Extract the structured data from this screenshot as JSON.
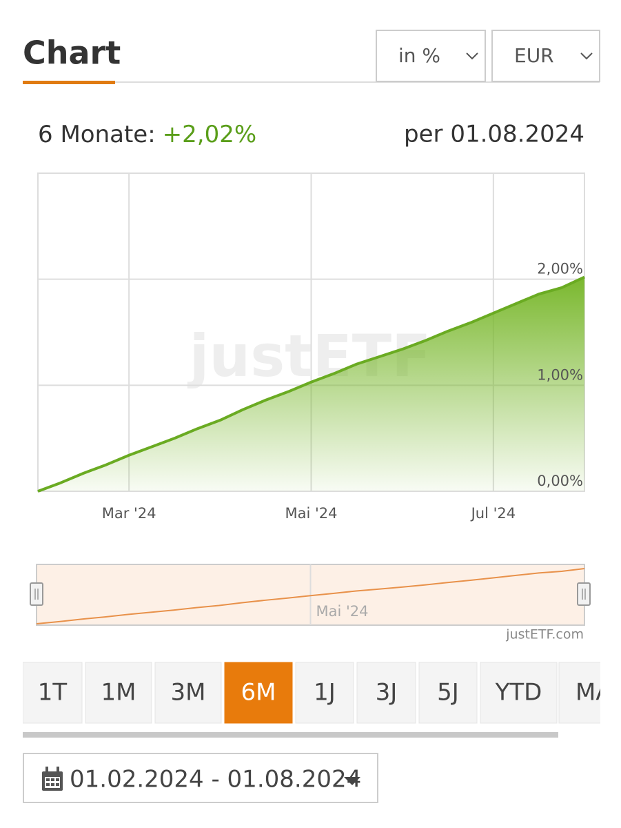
{
  "header": {
    "title": "Chart",
    "selects": [
      "in %",
      "EUR"
    ]
  },
  "summary": {
    "label": "6 Monate:",
    "change": "+2,02%",
    "as_of": "per 01.08.2024"
  },
  "chart_data": {
    "type": "area",
    "color": "#6aab22",
    "x": [
      2,
      2.25,
      2.5,
      2.75,
      3,
      3.25,
      3.5,
      3.75,
      4,
      4.25,
      4.5,
      4.75,
      5,
      5.25,
      5.5,
      5.75,
      6,
      6.25,
      6.5,
      6.75,
      7,
      7.25,
      7.5,
      7.75,
      8
    ],
    "values": [
      0.0,
      0.08,
      0.17,
      0.25,
      0.34,
      0.42,
      0.5,
      0.59,
      0.67,
      0.77,
      0.86,
      0.94,
      1.03,
      1.11,
      1.2,
      1.27,
      1.34,
      1.42,
      1.51,
      1.59,
      1.68,
      1.77,
      1.86,
      1.92,
      2.02
    ],
    "xlim": [
      2,
      8
    ],
    "xticks": [
      {
        "value": 3,
        "label": "Mar '24"
      },
      {
        "value": 5,
        "label": "Mai '24"
      },
      {
        "value": 7,
        "label": "Jul '24"
      }
    ],
    "ylim": [
      0,
      3
    ],
    "yticks": [
      {
        "value": 0,
        "label": "0,00%"
      },
      {
        "value": 1,
        "label": "1,00%"
      },
      {
        "value": 2,
        "label": "2,00%"
      }
    ],
    "grid": true,
    "watermark": "justETF"
  },
  "navigator": {
    "credit": "justETF.com"
  },
  "ranges": {
    "buttons": [
      "1T",
      "1M",
      "3M",
      "6M",
      "1J",
      "3J",
      "5J",
      "YTD",
      "MAX"
    ],
    "active": 3
  },
  "date_range": "01.02.2024 - 01.08.2024"
}
